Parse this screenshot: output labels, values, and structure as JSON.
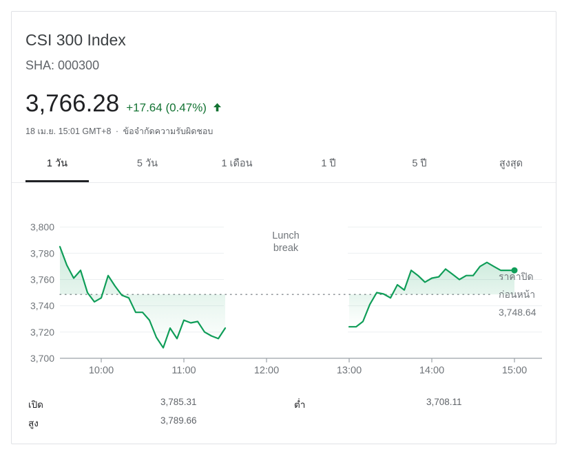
{
  "header": {
    "title": "CSI 300 Index",
    "ticker": "SHA: 000300",
    "price": "3,766.28",
    "change": "+17.64 (0.47%)",
    "timestamp": "18 เม.ย. 15:01 GMT+8",
    "separator": "·",
    "disclaimer": "ข้อจำกัดความรับผิดชอบ",
    "accent_color": "#137333"
  },
  "tabs": [
    {
      "label": "1 วัน",
      "active": true
    },
    {
      "label": "5 วัน",
      "active": false
    },
    {
      "label": "1 เดือน",
      "active": false
    },
    {
      "label": "1 ปี",
      "active": false
    },
    {
      "label": "5 ปี",
      "active": false
    },
    {
      "label": "สูงสุด",
      "active": false
    }
  ],
  "chart_data": {
    "type": "area",
    "xlim": [
      "09:30",
      "15:20"
    ],
    "ylim": [
      3700,
      3810
    ],
    "x_ticks": [
      "10:00",
      "11:00",
      "12:00",
      "13:00",
      "14:00",
      "15:00"
    ],
    "y_ticks": [
      "3,800",
      "3,780",
      "3,760",
      "3,740",
      "3,720",
      "3,700"
    ],
    "grid": true,
    "line_color": "#0f9d58",
    "annotation": {
      "lines": [
        "Lunch",
        "break"
      ],
      "gap": [
        "11:30",
        "13:00"
      ]
    },
    "reference_line": {
      "value": 3748.64,
      "label_lines": [
        "ราคาปิด",
        "ก่อนหน้า"
      ],
      "value_label": "3,748.64"
    },
    "series": [
      {
        "segments": [
          [
            {
              "t": "09:30",
              "v": 3785
            },
            {
              "t": "09:35",
              "v": 3771
            },
            {
              "t": "09:40",
              "v": 3761
            },
            {
              "t": "09:45",
              "v": 3767
            },
            {
              "t": "09:50",
              "v": 3750
            },
            {
              "t": "09:55",
              "v": 3743
            },
            {
              "t": "10:00",
              "v": 3746
            },
            {
              "t": "10:05",
              "v": 3763
            },
            {
              "t": "10:10",
              "v": 3755
            },
            {
              "t": "10:15",
              "v": 3748
            },
            {
              "t": "10:20",
              "v": 3746
            },
            {
              "t": "10:25",
              "v": 3735
            },
            {
              "t": "10:30",
              "v": 3735
            },
            {
              "t": "10:35",
              "v": 3729
            },
            {
              "t": "10:40",
              "v": 3716
            },
            {
              "t": "10:45",
              "v": 3708
            },
            {
              "t": "10:50",
              "v": 3723
            },
            {
              "t": "10:55",
              "v": 3715
            },
            {
              "t": "11:00",
              "v": 3729
            },
            {
              "t": "11:05",
              "v": 3727
            },
            {
              "t": "11:10",
              "v": 3728
            },
            {
              "t": "11:15",
              "v": 3720
            },
            {
              "t": "11:20",
              "v": 3717
            },
            {
              "t": "11:25",
              "v": 3715
            },
            {
              "t": "11:30",
              "v": 3723
            }
          ],
          [
            {
              "t": "13:00",
              "v": 3724
            },
            {
              "t": "13:05",
              "v": 3724
            },
            {
              "t": "13:10",
              "v": 3728
            },
            {
              "t": "13:15",
              "v": 3741
            },
            {
              "t": "13:20",
              "v": 3750
            },
            {
              "t": "13:25",
              "v": 3749
            },
            {
              "t": "13:30",
              "v": 3746
            },
            {
              "t": "13:35",
              "v": 3756
            },
            {
              "t": "13:40",
              "v": 3752
            },
            {
              "t": "13:45",
              "v": 3767
            },
            {
              "t": "13:50",
              "v": 3763
            },
            {
              "t": "13:55",
              "v": 3758
            },
            {
              "t": "14:00",
              "v": 3761
            },
            {
              "t": "14:05",
              "v": 3762
            },
            {
              "t": "14:10",
              "v": 3768
            },
            {
              "t": "14:15",
              "v": 3764
            },
            {
              "t": "14:20",
              "v": 3760
            },
            {
              "t": "14:25",
              "v": 3763
            },
            {
              "t": "14:30",
              "v": 3763
            },
            {
              "t": "14:35",
              "v": 3770
            },
            {
              "t": "14:40",
              "v": 3773
            },
            {
              "t": "14:45",
              "v": 3770
            },
            {
              "t": "14:50",
              "v": 3767
            },
            {
              "t": "14:55",
              "v": 3767
            },
            {
              "t": "15:00",
              "v": 3767
            }
          ]
        ]
      }
    ]
  },
  "stats": [
    {
      "label": "เปิด",
      "value": "3,785.31"
    },
    {
      "label": "ต่ำ",
      "value": "3,708.11"
    },
    {
      "label": "สูง",
      "value": "3,789.66"
    }
  ]
}
